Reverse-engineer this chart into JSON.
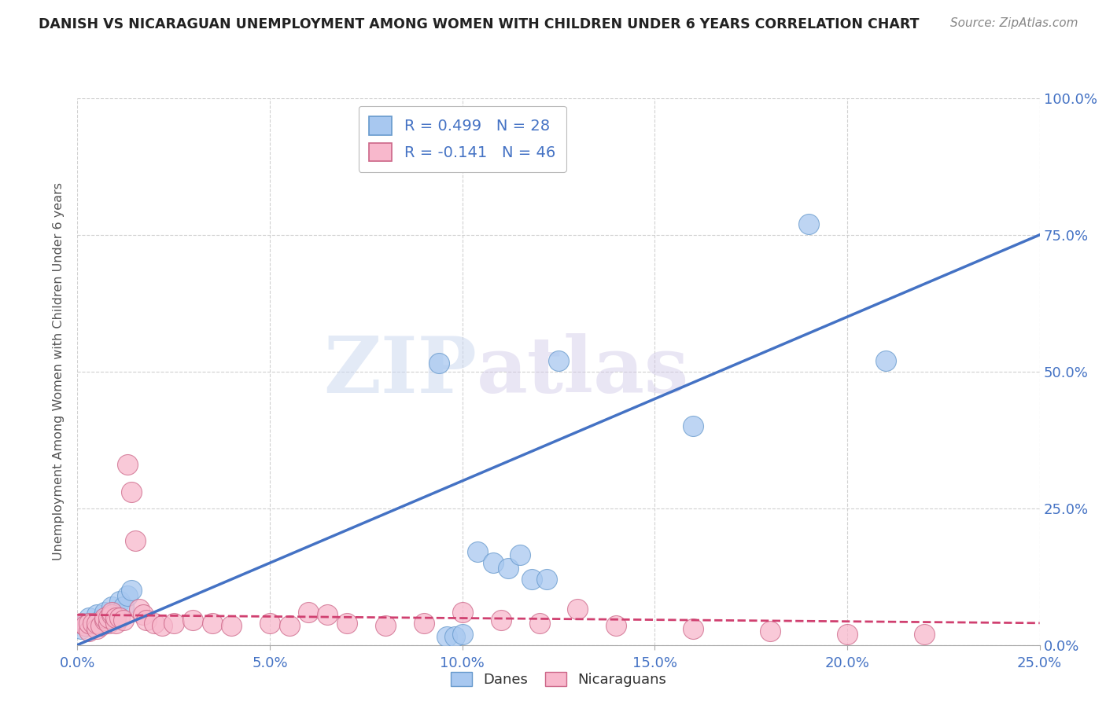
{
  "title": "DANISH VS NICARAGUAN UNEMPLOYMENT AMONG WOMEN WITH CHILDREN UNDER 6 YEARS CORRELATION CHART",
  "source": "Source: ZipAtlas.com",
  "ylabel": "Unemployment Among Women with Children Under 6 years",
  "xlabel_ticks": [
    "0.0%",
    "5.0%",
    "10.0%",
    "15.0%",
    "20.0%",
    "25.0%"
  ],
  "ylabel_ticks": [
    "0.0%",
    "25.0%",
    "50.0%",
    "75.0%",
    "100.0%"
  ],
  "xlim": [
    0.0,
    0.25
  ],
  "ylim": [
    0.0,
    1.0
  ],
  "watermark_left": "ZIP",
  "watermark_right": "atlas",
  "legend_r_danes": "R = 0.499",
  "legend_n_danes": "N = 28",
  "legend_r_nicaraguans": "R = -0.141",
  "legend_n_nicaraguans": "N = 46",
  "danes_color": "#a8c8f0",
  "danes_line_color": "#4472c4",
  "danes_edge_color": "#6699cc",
  "nicaraguans_color": "#f8b8cc",
  "nicaraguans_line_color": "#d04070",
  "nicaraguans_edge_color": "#cc6688",
  "background_color": "#ffffff",
  "danes_x": [
    0.001,
    0.002,
    0.003,
    0.004,
    0.005,
    0.006,
    0.007,
    0.008,
    0.009,
    0.01,
    0.011,
    0.012,
    0.013,
    0.014,
    0.094,
    0.096,
    0.098,
    0.1,
    0.104,
    0.108,
    0.112,
    0.115,
    0.118,
    0.122,
    0.125,
    0.16,
    0.19,
    0.21
  ],
  "danes_y": [
    0.03,
    0.04,
    0.05,
    0.035,
    0.055,
    0.045,
    0.06,
    0.05,
    0.07,
    0.06,
    0.08,
    0.07,
    0.09,
    0.1,
    0.515,
    0.015,
    0.015,
    0.02,
    0.17,
    0.15,
    0.14,
    0.165,
    0.12,
    0.12,
    0.52,
    0.4,
    0.77,
    0.52
  ],
  "nicaraguans_x": [
    0.001,
    0.002,
    0.003,
    0.003,
    0.004,
    0.005,
    0.005,
    0.006,
    0.007,
    0.007,
    0.008,
    0.008,
    0.009,
    0.009,
    0.01,
    0.01,
    0.011,
    0.012,
    0.013,
    0.014,
    0.015,
    0.016,
    0.017,
    0.018,
    0.02,
    0.022,
    0.025,
    0.03,
    0.035,
    0.04,
    0.05,
    0.055,
    0.06,
    0.065,
    0.07,
    0.08,
    0.09,
    0.1,
    0.11,
    0.12,
    0.13,
    0.14,
    0.16,
    0.18,
    0.2,
    0.22
  ],
  "nicaraguans_y": [
    0.04,
    0.035,
    0.025,
    0.04,
    0.04,
    0.03,
    0.04,
    0.035,
    0.045,
    0.05,
    0.04,
    0.05,
    0.055,
    0.06,
    0.04,
    0.05,
    0.05,
    0.045,
    0.33,
    0.28,
    0.19,
    0.065,
    0.055,
    0.045,
    0.04,
    0.035,
    0.04,
    0.045,
    0.04,
    0.035,
    0.04,
    0.035,
    0.06,
    0.055,
    0.04,
    0.035,
    0.04,
    0.06,
    0.045,
    0.04,
    0.065,
    0.035,
    0.03,
    0.025,
    0.02,
    0.02
  ],
  "danes_line_x": [
    0.0,
    0.25
  ],
  "danes_line_y": [
    0.0,
    0.75
  ],
  "nic_line_x": [
    0.0,
    0.25
  ],
  "nic_line_y": [
    0.055,
    0.04
  ]
}
